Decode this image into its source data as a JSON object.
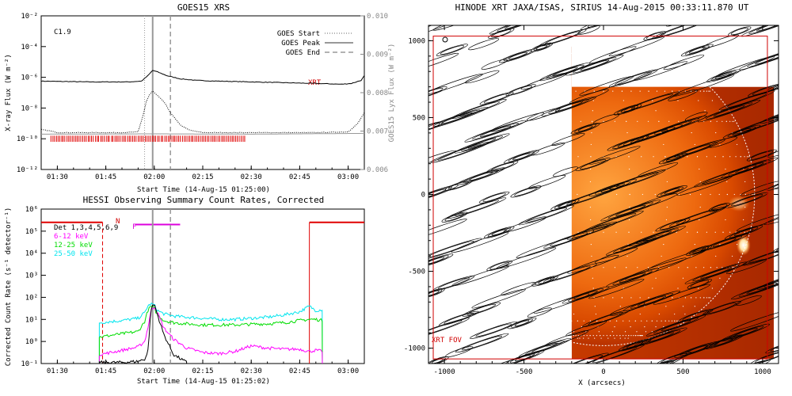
{
  "chart_data": [
    {
      "type": "line",
      "title": "GOES15 XRS",
      "xlabel": "Start Time (14-Aug-15 01:25:00)",
      "ylabel": "X-ray Flux (W m$^{-2}$)",
      "ylabel_display": "X-ray Flux (W m⁻²)",
      "ylabel_right": "GOES15 Lyx Flux (W m⁻²)",
      "ylog": true,
      "ylim": [
        -12,
        -2
      ],
      "xlim": [
        85,
        185
      ],
      "xticks": [
        {
          "v": 90,
          "label": "01:30"
        },
        {
          "v": 105,
          "label": "01:45"
        },
        {
          "v": 120,
          "label": "02:00"
        },
        {
          "v": 135,
          "label": "02:15"
        },
        {
          "v": 150,
          "label": "02:30"
        },
        {
          "v": 165,
          "label": "02:45"
        },
        {
          "v": 180,
          "label": "03:00"
        }
      ],
      "yticks": [
        {
          "v": -12,
          "label": "10⁻¹²"
        },
        {
          "v": -10,
          "label": "10⁻¹⁰"
        },
        {
          "v": -8,
          "label": "10⁻⁸"
        },
        {
          "v": -6,
          "label": "10⁻⁶"
        },
        {
          "v": -4,
          "label": "10⁻⁴"
        },
        {
          "v": -2,
          "label": "10⁻²"
        }
      ],
      "yticks_right": [
        "0.010",
        "0.009",
        "0.008",
        "0.007",
        "0.006"
      ],
      "class_label": "C1.9",
      "xrt_label": "XRT",
      "legend": [
        {
          "name": "GOES Start",
          "style": "dotted"
        },
        {
          "name": "GOES Peak",
          "style": "solid"
        },
        {
          "name": "GOES End",
          "style": "dashed"
        }
      ],
      "vlines": {
        "start": 117,
        "peak": 119.5,
        "end": 125
      },
      "series": [
        {
          "name": "long",
          "x": [
            85,
            100,
            112,
            116,
            118,
            119.5,
            121,
            124,
            128,
            133,
            140,
            150,
            160,
            170,
            178,
            181,
            184,
            185
          ],
          "y": [
            -6.25,
            -6.3,
            -6.3,
            -6.25,
            -5.9,
            -5.55,
            -5.65,
            -5.9,
            -6.1,
            -6.2,
            -6.25,
            -6.3,
            -6.35,
            -6.4,
            -6.45,
            -6.4,
            -6.2,
            -5.9
          ]
        },
        {
          "name": "short",
          "x": [
            85,
            88,
            90,
            100,
            110,
            115,
            116.5,
            117.5,
            118.5,
            119.5,
            121,
            123,
            125,
            128,
            131,
            135,
            150,
            170,
            180,
            183,
            185
          ],
          "y": [
            -9.4,
            -9.5,
            -9.6,
            -9.6,
            -9.6,
            -9.55,
            -8.5,
            -7.6,
            -7.15,
            -6.9,
            -7.2,
            -7.6,
            -8.3,
            -9.1,
            -9.45,
            -9.6,
            -9.6,
            -9.6,
            -9.55,
            -9.0,
            -8.3
          ]
        },
        {
          "name": "lyx",
          "x": [
            85,
            120,
            150,
            185
          ],
          "y": [
            -9.7,
            -9.68,
            -9.7,
            -9.65
          ]
        }
      ],
      "xrt_ticks_range": [
        88,
        148
      ]
    },
    {
      "type": "line",
      "title": "HESSI Observing Summary Count Rates, Corrected",
      "xlabel": "Start Time (14-Aug-15 01:25:02)",
      "ylabel": "Corrected Count Rate (s⁻¹ detector⁻¹)",
      "ylog": true,
      "ylim": [
        -1,
        6
      ],
      "xlim": [
        85,
        185
      ],
      "xticks": [
        {
          "v": 90,
          "label": "01:30"
        },
        {
          "v": 105,
          "label": "01:45"
        },
        {
          "v": 120,
          "label": "02:00"
        },
        {
          "v": 135,
          "label": "02:15"
        },
        {
          "v": 150,
          "label": "02:30"
        },
        {
          "v": 165,
          "label": "02:45"
        },
        {
          "v": 180,
          "label": "03:00"
        }
      ],
      "yticks": [
        {
          "v": -1,
          "label": "10⁻¹"
        },
        {
          "v": 0,
          "label": "10⁰"
        },
        {
          "v": 1,
          "label": "10¹"
        },
        {
          "v": 2,
          "label": "10²"
        },
        {
          "v": 3,
          "label": "10³"
        },
        {
          "v": 4,
          "label": "10⁴"
        },
        {
          "v": 5,
          "label": "10⁵"
        },
        {
          "v": 6,
          "label": "10⁶"
        }
      ],
      "legend": [
        {
          "name": "Det 1,3,4,5,6,9",
          "color": "#000000"
        },
        {
          "name": "6-12 keV",
          "color": "#ff00ff"
        },
        {
          "name": "12-25 keV",
          "color": "#00dd00"
        },
        {
          "name": "25-50 keV",
          "color": "#00e5ee"
        }
      ],
      "n_label": "N",
      "f_label": "F",
      "night_ranges": [
        [
          85,
          104
        ],
        [
          168,
          185
        ]
      ],
      "night_level": 5.4,
      "flare_range": [
        114,
        128
      ],
      "flare_level": 5.3,
      "vlines": {
        "peak": 119.5,
        "end": 125
      },
      "data_start": 103,
      "data_end": 172,
      "series": [
        {
          "name": "25-50 keV",
          "color": "#00e5ee",
          "x": [
            103,
            110,
            115,
            117,
            118,
            119,
            120,
            121,
            123,
            126,
            130,
            135,
            140,
            145,
            150,
            155,
            160,
            165,
            168,
            170,
            172
          ],
          "y": [
            0.85,
            0.95,
            1.05,
            1.3,
            1.6,
            1.7,
            1.65,
            1.4,
            1.25,
            1.15,
            1.1,
            1.05,
            1.0,
            1.0,
            1.05,
            1.1,
            1.2,
            1.35,
            1.6,
            1.4,
            1.45
          ]
        },
        {
          "name": "12-25 keV",
          "color": "#00dd00",
          "x": [
            103,
            110,
            115,
            117,
            118,
            119,
            120,
            121,
            123,
            126,
            130,
            135,
            140,
            145,
            150,
            155,
            160,
            165,
            168,
            170,
            172
          ],
          "y": [
            0.2,
            0.35,
            0.45,
            0.9,
            1.4,
            1.6,
            1.5,
            1.2,
            0.95,
            0.85,
            0.8,
            0.75,
            0.75,
            0.75,
            0.78,
            0.8,
            0.85,
            0.95,
            1.0,
            1.0,
            0.95
          ]
        },
        {
          "name": "6-12 keV",
          "color": "#ff00ff",
          "x": [
            103,
            110,
            115,
            117,
            118,
            119,
            120,
            121,
            123,
            126,
            130,
            135,
            140,
            145,
            150,
            155,
            160,
            165,
            168,
            170,
            172
          ],
          "y": [
            -0.6,
            -0.4,
            -0.25,
            0.0,
            0.6,
            1.4,
            1.6,
            1.3,
            0.6,
            0.1,
            -0.3,
            -0.5,
            -0.55,
            -0.45,
            -0.2,
            -0.3,
            -0.35,
            -0.35,
            -0.45,
            -0.4,
            -0.45
          ]
        },
        {
          "name": "Det 1,3,4,5,6,9",
          "color": "#000000",
          "x": [
            103,
            110,
            115,
            117,
            118,
            119,
            120,
            121,
            123,
            126,
            130
          ],
          "y": [
            -0.95,
            -0.95,
            -0.9,
            -0.8,
            -0.5,
            1.5,
            1.7,
            1.2,
            0.3,
            -0.6,
            -0.95
          ]
        }
      ]
    },
    {
      "type": "heatmap",
      "title": "HINODE XRT JAXA/ISAS, SIRIUS 14-Aug-2015 00:33:11.870 UT",
      "xlabel": "X (arcsecs)",
      "ylabel": "",
      "xlim": [
        -1100,
        1100
      ],
      "ylim": [
        -1100,
        1100
      ],
      "xticks": [
        -1000,
        -500,
        0,
        500,
        1000
      ],
      "yticks": [
        -1000,
        -500,
        0,
        500,
        1000
      ],
      "xrt_fov_label": "XRT FOV",
      "image_extent": {
        "x": [
          -200,
          1070
        ],
        "y": [
          -1070,
          700
        ]
      },
      "solar_radius": 950,
      "hot_spot": {
        "x": 880,
        "y": -330
      },
      "fov_box": {
        "x": [
          -1070,
          1030
        ],
        "y": [
          -1070,
          1030
        ]
      }
    }
  ]
}
